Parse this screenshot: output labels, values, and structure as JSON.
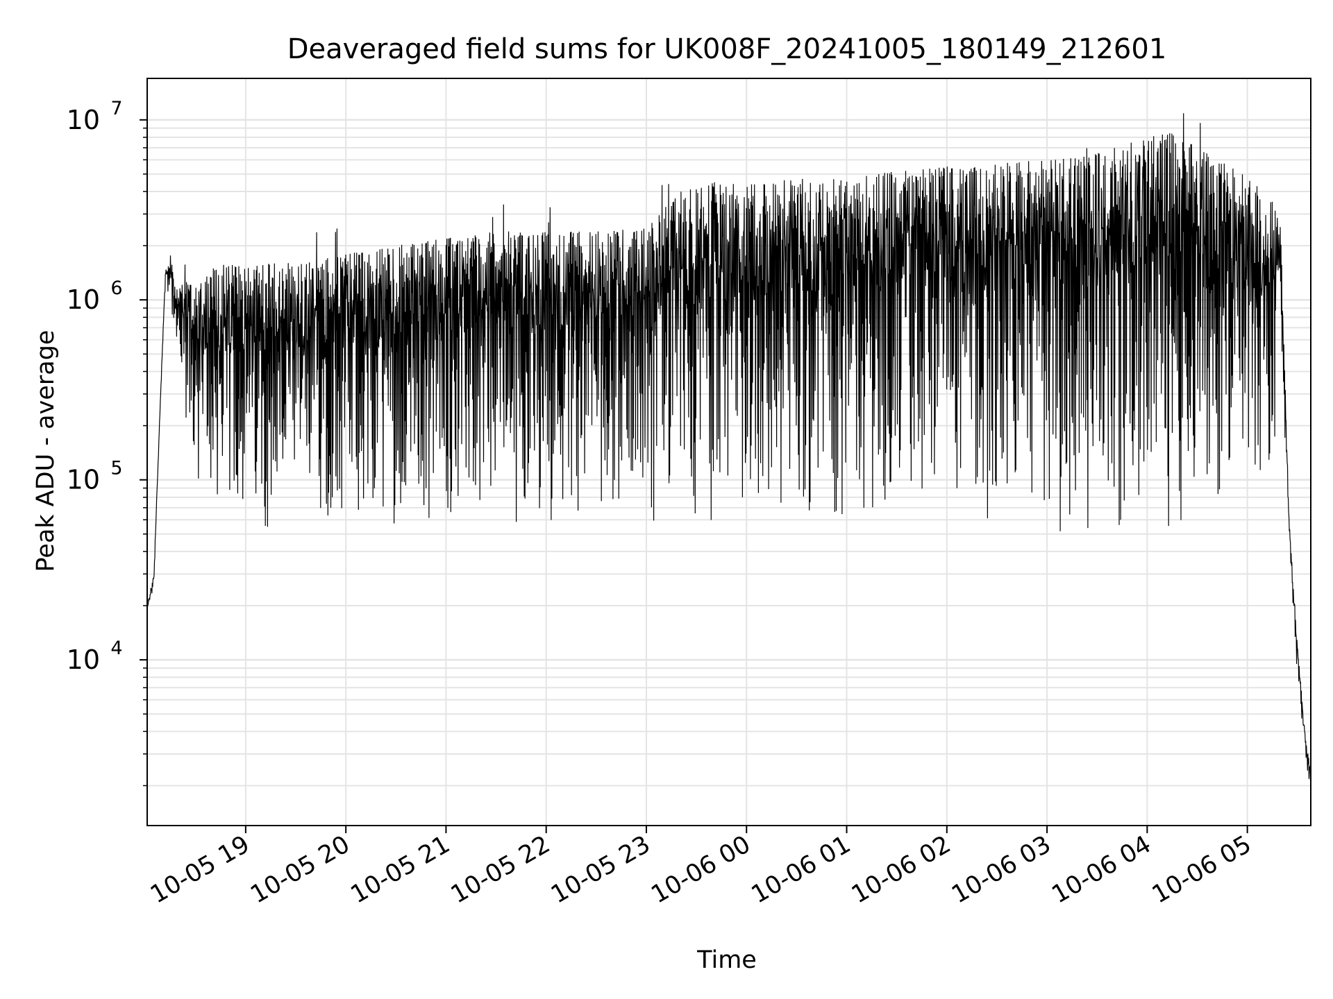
{
  "chart_data": {
    "type": "line",
    "title": "Deaveraged field sums for UK008F_20241005_180149_212601",
    "xlabel": "Time",
    "ylabel": "Peak ADU - average",
    "yscale": "log",
    "grid": true,
    "x_ticks": [
      "10-05 19",
      "10-05 20",
      "10-05 21",
      "10-05 22",
      "10-05 23",
      "10-06 00",
      "10-06 01",
      "10-06 02",
      "10-06 03",
      "10-06 04",
      "10-06 05"
    ],
    "y_ticks": [
      {
        "base": "10",
        "exp": "4",
        "value": 10000
      },
      {
        "base": "10",
        "exp": "5",
        "value": 100000
      },
      {
        "base": "10",
        "exp": "6",
        "value": 1000000
      },
      {
        "base": "10",
        "exp": "7",
        "value": 10000000
      }
    ],
    "xlim": [
      "2024-10-05 18:01",
      "2024-10-06 05:38"
    ],
    "ylim": [
      1200,
      17000000
    ],
    "line_color": "#000000",
    "series": [
      {
        "x": [
          "2024-10-05 18:01",
          "2024-10-05 18:05",
          "2024-10-05 18:09",
          "2024-10-05 18:12",
          "2024-10-05 18:15",
          "2024-10-05 18:18",
          "2024-10-05 18:20",
          "2024-10-05 18:25",
          "2024-10-05 18:30",
          "2024-10-05 18:40",
          "2024-10-05 18:50",
          "2024-10-05 19:00",
          "2024-10-05 19:15",
          "2024-10-05 19:30",
          "2024-10-05 19:45",
          "2024-10-05 20:00",
          "2024-10-05 20:30",
          "2024-10-05 21:00",
          "2024-10-05 21:30",
          "2024-10-05 22:00",
          "2024-10-05 22:30",
          "2024-10-05 23:00",
          "2024-10-05 23:20",
          "2024-10-05 23:40",
          "2024-10-06 00:00",
          "2024-10-06 00:30",
          "2024-10-06 01:00",
          "2024-10-06 01:30",
          "2024-10-06 02:00",
          "2024-10-06 02:30",
          "2024-10-06 03:00",
          "2024-10-06 03:30",
          "2024-10-06 04:00",
          "2024-10-06 04:15",
          "2024-10-06 04:30",
          "2024-10-06 04:50",
          "2024-10-06 05:05",
          "2024-10-06 05:15",
          "2024-10-06 05:20",
          "2024-10-06 05:25",
          "2024-10-06 05:30",
          "2024-10-06 05:35",
          "2024-10-06 05:38"
        ],
        "upper": [
          20000,
          30000,
          300000,
          1500000,
          1800000,
          1100000,
          1200000,
          1300000,
          1400000,
          1500000,
          1600000,
          1500000,
          1600000,
          1600000,
          1700000,
          1800000,
          2000000,
          2200000,
          2400000,
          2400000,
          2400000,
          2500000,
          4000000,
          4500000,
          4500000,
          4700000,
          4700000,
          5200000,
          5500000,
          5800000,
          6000000,
          6500000,
          8000000,
          8500000,
          7000000,
          5500000,
          4500000,
          3500000,
          2500000,
          60000,
          12000,
          3500,
          2500
        ],
        "lower": [
          18000,
          25000,
          280000,
          1300000,
          900000,
          500000,
          300000,
          120000,
          80000,
          60000,
          60000,
          55000,
          50000,
          45000,
          55000,
          55000,
          55000,
          55000,
          55000,
          55000,
          60000,
          60000,
          55000,
          55000,
          60000,
          60000,
          60000,
          55000,
          55000,
          55000,
          50000,
          50000,
          50000,
          50000,
          55000,
          60000,
          70000,
          80000,
          600000,
          40000,
          8000,
          2500,
          2000
        ]
      }
    ]
  }
}
